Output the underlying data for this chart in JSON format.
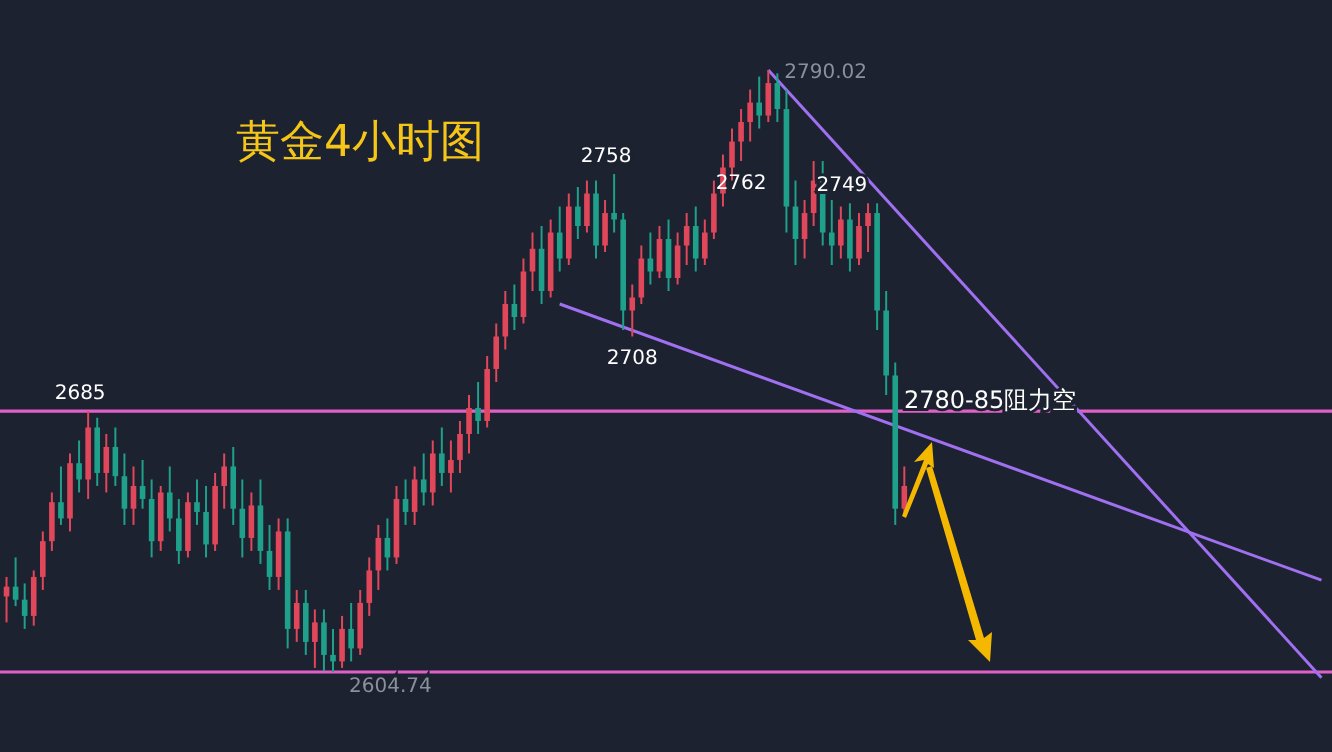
{
  "chart_data": {
    "type": "candlestick",
    "title": "黄金4小时图",
    "categories": [
      null,
      null,
      null,
      null,
      null,
      null,
      null,
      null,
      null,
      null,
      null,
      null,
      null,
      null,
      null,
      null,
      null,
      null,
      null,
      null,
      null,
      null,
      null,
      null,
      null,
      null,
      null,
      null,
      null,
      null,
      null,
      null,
      null,
      null,
      null,
      null,
      null,
      null,
      null,
      null,
      null,
      null,
      null,
      null,
      null,
      null,
      null,
      null,
      null,
      null,
      null,
      null,
      null,
      null,
      null,
      null,
      null,
      null,
      null,
      null,
      null,
      null,
      null,
      null,
      null,
      null,
      null,
      null,
      null,
      null,
      null,
      null,
      null,
      null,
      null,
      null,
      null,
      null,
      null,
      null,
      null,
      null,
      null,
      null,
      null,
      null,
      null,
      null,
      null,
      null,
      null,
      null,
      null,
      null,
      null,
      null,
      null,
      null,
      null,
      null,
      null,
      null,
      null,
      null,
      null,
      null,
      null,
      null,
      null,
      null,
      null,
      null,
      null,
      null,
      null,
      null,
      null,
      null,
      null,
      null,
      null,
      null,
      null,
      null,
      null,
      null,
      null,
      null,
      null,
      null,
      null,
      null,
      null,
      null,
      null,
      null,
      null,
      null,
      null,
      null,
      null,
      null,
      null,
      null,
      null,
      null
    ],
    "ohlc": [
      [
        2628,
        2634,
        2620,
        2631
      ],
      [
        2631,
        2640,
        2625,
        2627
      ],
      [
        2627,
        2632,
        2618,
        2622
      ],
      [
        2622,
        2636,
        2619,
        2634
      ],
      [
        2634,
        2648,
        2630,
        2645
      ],
      [
        2645,
        2660,
        2642,
        2657
      ],
      [
        2657,
        2668,
        2650,
        2652
      ],
      [
        2652,
        2672,
        2648,
        2669
      ],
      [
        2669,
        2676,
        2660,
        2664
      ],
      [
        2664,
        2685,
        2658,
        2680
      ],
      [
        2680,
        2683,
        2662,
        2666
      ],
      [
        2666,
        2678,
        2660,
        2674
      ],
      [
        2674,
        2680,
        2662,
        2665
      ],
      [
        2665,
        2672,
        2650,
        2655
      ],
      [
        2655,
        2668,
        2650,
        2662
      ],
      [
        2662,
        2670,
        2655,
        2658
      ],
      [
        2658,
        2664,
        2640,
        2645
      ],
      [
        2645,
        2662,
        2642,
        2660
      ],
      [
        2660,
        2668,
        2648,
        2652
      ],
      [
        2652,
        2658,
        2638,
        2642
      ],
      [
        2642,
        2660,
        2640,
        2657
      ],
      [
        2657,
        2664,
        2650,
        2654
      ],
      [
        2654,
        2662,
        2640,
        2644
      ],
      [
        2644,
        2666,
        2642,
        2662
      ],
      [
        2662,
        2672,
        2655,
        2668
      ],
      [
        2668,
        2674,
        2650,
        2655
      ],
      [
        2655,
        2664,
        2640,
        2646
      ],
      [
        2646,
        2660,
        2642,
        2656
      ],
      [
        2656,
        2664,
        2638,
        2642
      ],
      [
        2642,
        2650,
        2630,
        2634
      ],
      [
        2634,
        2652,
        2630,
        2648
      ],
      [
        2648,
        2652,
        2612,
        2618
      ],
      [
        2618,
        2630,
        2614,
        2626
      ],
      [
        2626,
        2630,
        2610,
        2614
      ],
      [
        2614,
        2624,
        2606,
        2620
      ],
      [
        2620,
        2624,
        2605,
        2610
      ],
      [
        2610,
        2618,
        2604.74,
        2608
      ],
      [
        2608,
        2622,
        2606,
        2618
      ],
      [
        2618,
        2626,
        2608,
        2612
      ],
      [
        2612,
        2630,
        2610,
        2626
      ],
      [
        2626,
        2640,
        2622,
        2636
      ],
      [
        2636,
        2650,
        2630,
        2646
      ],
      [
        2646,
        2652,
        2636,
        2640
      ],
      [
        2640,
        2662,
        2638,
        2658
      ],
      [
        2658,
        2664,
        2650,
        2654
      ],
      [
        2654,
        2668,
        2650,
        2664
      ],
      [
        2664,
        2672,
        2656,
        2660
      ],
      [
        2660,
        2676,
        2656,
        2672
      ],
      [
        2672,
        2680,
        2662,
        2666
      ],
      [
        2666,
        2676,
        2660,
        2670
      ],
      [
        2670,
        2682,
        2666,
        2678
      ],
      [
        2678,
        2690,
        2672,
        2686
      ],
      [
        2686,
        2694,
        2678,
        2682
      ],
      [
        2682,
        2702,
        2680,
        2698
      ],
      [
        2698,
        2712,
        2694,
        2708
      ],
      [
        2708,
        2722,
        2704,
        2718
      ],
      [
        2718,
        2724,
        2710,
        2714
      ],
      [
        2714,
        2732,
        2712,
        2728
      ],
      [
        2728,
        2740,
        2722,
        2735
      ],
      [
        2735,
        2742,
        2718,
        2722
      ],
      [
        2722,
        2744,
        2720,
        2740
      ],
      [
        2740,
        2748,
        2728,
        2732
      ],
      [
        2732,
        2752,
        2730,
        2748
      ],
      [
        2748,
        2754,
        2738,
        2742
      ],
      [
        2742,
        2756,
        2740,
        2752
      ],
      [
        2752,
        2756,
        2732,
        2736
      ],
      [
        2736,
        2750,
        2734,
        2746
      ],
      [
        2746,
        2758,
        2740,
        2744
      ],
      [
        2744,
        2746,
        2710,
        2716
      ],
      [
        2716,
        2724,
        2708,
        2720
      ],
      [
        2720,
        2736,
        2718,
        2732
      ],
      [
        2732,
        2740,
        2724,
        2728
      ],
      [
        2728,
        2742,
        2726,
        2738
      ],
      [
        2738,
        2744,
        2722,
        2726
      ],
      [
        2726,
        2740,
        2724,
        2736
      ],
      [
        2736,
        2746,
        2730,
        2742
      ],
      [
        2742,
        2748,
        2728,
        2732
      ],
      [
        2732,
        2744,
        2730,
        2740
      ],
      [
        2740,
        2756,
        2738,
        2752
      ],
      [
        2752,
        2764,
        2748,
        2760
      ],
      [
        2760,
        2772,
        2756,
        2768
      ],
      [
        2768,
        2778,
        2762,
        2774
      ],
      [
        2774,
        2784,
        2768,
        2780
      ],
      [
        2780,
        2788,
        2772,
        2776
      ],
      [
        2776,
        2790.02,
        2774,
        2786
      ],
      [
        2786,
        2789,
        2774,
        2778
      ],
      [
        2778,
        2784,
        2740,
        2748
      ],
      [
        2748,
        2756,
        2730,
        2738
      ],
      [
        2738,
        2750,
        2732,
        2746
      ],
      [
        2746,
        2762,
        2742,
        2756
      ],
      [
        2756,
        2762,
        2736,
        2740
      ],
      [
        2740,
        2750,
        2730,
        2736
      ],
      [
        2736,
        2748,
        2732,
        2744
      ],
      [
        2744,
        2749,
        2728,
        2732
      ],
      [
        2732,
        2746,
        2730,
        2742
      ],
      [
        2742,
        2749,
        2734,
        2746
      ],
      [
        2746,
        2749,
        2710,
        2716
      ],
      [
        2716,
        2722,
        2690,
        2696
      ],
      [
        2696,
        2700,
        2650,
        2655
      ],
      [
        2655,
        2668,
        2653,
        2662
      ],
      null,
      null,
      null,
      null,
      null,
      null,
      null,
      null,
      null,
      null,
      null,
      null,
      null,
      null,
      null,
      null,
      null,
      null,
      null,
      null,
      null,
      null,
      null,
      null,
      null,
      null,
      null,
      null,
      null,
      null,
      null,
      null,
      null,
      null,
      null,
      null,
      null,
      null,
      null,
      null,
      null,
      null,
      null,
      null,
      null,
      null
    ],
    "series": [
      {
        "type": "line",
        "color": "#a070f0",
        "values": [
          null,
          null,
          null,
          null,
          null,
          null,
          null,
          null,
          null,
          null,
          null,
          null,
          null,
          null,
          null,
          null,
          null,
          null,
          null,
          null,
          null,
          null,
          null,
          null,
          null,
          null,
          null,
          null,
          null,
          null,
          null,
          null,
          null,
          null,
          null,
          null,
          null,
          null,
          null,
          null,
          null,
          null,
          null,
          null,
          null,
          null,
          null,
          null,
          null,
          null,
          null,
          null,
          null,
          null,
          null,
          null,
          null,
          null,
          null,
          null,
          null,
          2718,
          null,
          null,
          null,
          null,
          null,
          null,
          null,
          null,
          null,
          null,
          null,
          null,
          null,
          null,
          null,
          null,
          null,
          null,
          null,
          null,
          null,
          null,
          null,
          null,
          null,
          null,
          null,
          null,
          null,
          null,
          null,
          null,
          null,
          null,
          null,
          null,
          null,
          null,
          null,
          null,
          null,
          null,
          null,
          null,
          null,
          null,
          null,
          null,
          null,
          null,
          null,
          null,
          null,
          null,
          null,
          null,
          null,
          null,
          null,
          null,
          null,
          null,
          null,
          null,
          null,
          null,
          null,
          null,
          null,
          null,
          null,
          null,
          null,
          null,
          null,
          null,
          null,
          null,
          null,
          null,
          null,
          null,
          null,
          2633
        ]
      },
      {
        "type": "line",
        "color": "#a070f0",
        "values": [
          null,
          null,
          null,
          null,
          null,
          null,
          null,
          null,
          null,
          null,
          null,
          null,
          null,
          null,
          null,
          null,
          null,
          null,
          null,
          null,
          null,
          null,
          null,
          null,
          null,
          null,
          null,
          null,
          null,
          null,
          null,
          null,
          null,
          null,
          null,
          null,
          null,
          null,
          null,
          null,
          null,
          null,
          null,
          null,
          null,
          null,
          null,
          null,
          null,
          null,
          null,
          null,
          null,
          null,
          null,
          null,
          null,
          null,
          null,
          null,
          null,
          null,
          null,
          null,
          null,
          null,
          null,
          null,
          null,
          null,
          null,
          null,
          null,
          null,
          null,
          null,
          null,
          null,
          null,
          null,
          null,
          null,
          null,
          null,
          2790,
          null,
          null,
          null,
          null,
          null,
          null,
          null,
          null,
          null,
          null,
          null,
          null,
          null,
          null,
          null,
          null,
          null,
          null,
          null,
          null,
          null,
          null,
          null,
          null,
          null,
          null,
          null,
          null,
          null,
          null,
          null,
          null,
          null,
          null,
          null,
          null,
          null,
          null,
          null,
          null,
          null,
          null,
          null,
          null,
          null,
          null,
          null,
          null,
          null,
          null,
          null,
          null,
          null,
          null,
          null,
          null,
          null,
          null,
          null,
          null,
          2603
        ]
      }
    ],
    "ref_lines": [
      {
        "axis": "y",
        "value": 2685,
        "color": "#e060c8"
      },
      {
        "axis": "y",
        "value": 2604.74,
        "color": "#e060c8"
      }
    ],
    "annotations": [
      {
        "text": "2685",
        "y": 2685
      },
      {
        "text": "2758",
        "y": 2758
      },
      {
        "text": "2708",
        "y": 2708
      },
      "2790.02",
      {
        "text": "2762",
        "y": 2762
      },
      {
        "text": "2749",
        "y": 2749
      },
      {
        "text": "2604.74",
        "y": 2604.74
      },
      "2780-85阻力空"
    ]
  }
}
